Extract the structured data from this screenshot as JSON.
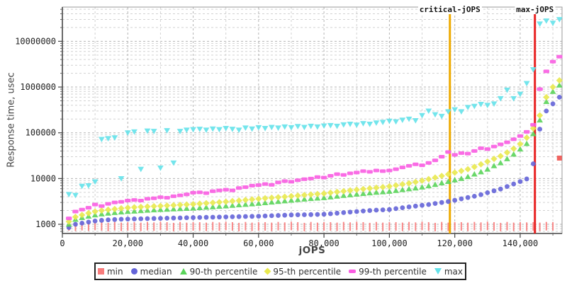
{
  "chart_data": {
    "type": "scatter",
    "title": "",
    "xlabel": "jOPS",
    "ylabel": "Response time, usec",
    "x_axis": {
      "min": 0,
      "max": 152800,
      "tick_values": [
        0,
        20000,
        40000,
        60000,
        80000,
        100000,
        120000,
        140000
      ],
      "tick_labels": [
        "0",
        "20,000",
        "40,000",
        "60,000",
        "80,000",
        "100,000",
        "120,000",
        "140,000"
      ],
      "minor_tick_step": 10000
    },
    "y_axis": {
      "scale": "log",
      "min": 630,
      "max": 56000000,
      "tick_values": [
        1000,
        10000,
        100000,
        1000000,
        10000000
      ],
      "tick_labels": [
        "1000",
        "10000",
        "100000",
        "1000000",
        "10000000"
      ]
    },
    "grid": {
      "style": "dashed",
      "minor_color": "#d2d2d2",
      "major_color": "#b4b4b4"
    },
    "annotations": [
      {
        "label": "critical-jOPS",
        "x": 118500,
        "color": "#eeaa00"
      },
      {
        "label": "max-jOPS",
        "x": 144500,
        "color": "#e82222"
      }
    ],
    "x": [
      2000,
      4000,
      6000,
      8000,
      10000,
      12000,
      14000,
      16000,
      18000,
      20000,
      22000,
      24000,
      26000,
      28000,
      30000,
      32000,
      34000,
      36000,
      38000,
      40000,
      42000,
      44000,
      46000,
      48000,
      50000,
      52000,
      54000,
      56000,
      58000,
      60000,
      62000,
      64000,
      66000,
      68000,
      70000,
      72000,
      74000,
      76000,
      78000,
      80000,
      82000,
      84000,
      86000,
      88000,
      90000,
      92000,
      94000,
      96000,
      98000,
      100000,
      102000,
      104000,
      106000,
      108000,
      110000,
      112000,
      114000,
      116000,
      118000,
      120000,
      122000,
      124000,
      126000,
      128000,
      130000,
      132000,
      134000,
      136000,
      138000,
      140000,
      142000,
      144000,
      146000,
      148000,
      150000,
      152000
    ],
    "series": [
      {
        "name": "min",
        "color": "#f87c7c",
        "outlier_color": "#ef5350",
        "plot_marker": "tick",
        "legend_marker": "square",
        "values": [
          900,
          880,
          910,
          890,
          920,
          900,
          870,
          910,
          880,
          900,
          900,
          880,
          910,
          890,
          920,
          900,
          870,
          910,
          880,
          900,
          900,
          880,
          910,
          890,
          920,
          900,
          870,
          910,
          880,
          900,
          900,
          880,
          910,
          890,
          920,
          900,
          870,
          910,
          880,
          900,
          900,
          880,
          910,
          890,
          920,
          900,
          870,
          910,
          880,
          900,
          900,
          880,
          910,
          890,
          920,
          900,
          870,
          910,
          880,
          900,
          900,
          880,
          910,
          890,
          920,
          900,
          870,
          910,
          880,
          900,
          890,
          900,
          880,
          910,
          900,
          28000
        ]
      },
      {
        "name": "median",
        "color": "#6464d8",
        "plot_marker": "circle",
        "legend_marker": "circle",
        "values": [
          850,
          1000,
          1060,
          1120,
          1180,
          1220,
          1250,
          1270,
          1290,
          1300,
          1310,
          1320,
          1330,
          1340,
          1350,
          1360,
          1370,
          1380,
          1390,
          1400,
          1410,
          1420,
          1430,
          1440,
          1450,
          1460,
          1470,
          1480,
          1490,
          1500,
          1520,
          1540,
          1560,
          1580,
          1600,
          1610,
          1620,
          1630,
          1640,
          1660,
          1700,
          1750,
          1800,
          1850,
          1900,
          1950,
          2000,
          2040,
          2070,
          2100,
          2200,
          2300,
          2400,
          2500,
          2600,
          2700,
          2850,
          3000,
          3150,
          3350,
          3600,
          3850,
          4100,
          4450,
          4900,
          5400,
          5900,
          6700,
          7600,
          8600,
          9800,
          21000,
          120000,
          300000,
          430000,
          600000
        ]
      },
      {
        "name": "90-th percentile",
        "color": "#5ad45a",
        "plot_marker": "triangle-up",
        "legend_marker": "triangle-up",
        "values": [
          1000,
          1280,
          1400,
          1500,
          1600,
          1680,
          1750,
          1800,
          1850,
          1900,
          1940,
          1980,
          2020,
          2060,
          2100,
          2130,
          2160,
          2190,
          2220,
          2250,
          2300,
          2350,
          2400,
          2460,
          2520,
          2580,
          2650,
          2720,
          2790,
          2860,
          2950,
          3050,
          3150,
          3250,
          3350,
          3450,
          3550,
          3650,
          3720,
          3800,
          3950,
          4100,
          4250,
          4400,
          4550,
          4700,
          4850,
          5000,
          5100,
          5250,
          5450,
          5700,
          5950,
          6200,
          6500,
          6900,
          7400,
          8000,
          8600,
          9300,
          10000,
          11000,
          12500,
          14000,
          16000,
          19000,
          22000,
          27000,
          34000,
          44000,
          58000,
          95000,
          190000,
          480000,
          800000,
          1100000
        ]
      },
      {
        "name": "95-th percentile",
        "color": "#e9e94e",
        "plot_marker": "diamond",
        "legend_marker": "diamond",
        "values": [
          1150,
          1450,
          1600,
          1750,
          1900,
          2000,
          2080,
          2150,
          2230,
          2300,
          2350,
          2400,
          2440,
          2480,
          2520,
          2560,
          2610,
          2660,
          2700,
          2750,
          2820,
          2890,
          2960,
          3040,
          3120,
          3210,
          3300,
          3400,
          3500,
          3600,
          3700,
          3800,
          3900,
          4000,
          4120,
          4240,
          4360,
          4480,
          4600,
          4720,
          4900,
          5100,
          5300,
          5500,
          5700,
          5900,
          6100,
          6300,
          6500,
          6750,
          7100,
          7500,
          7900,
          8400,
          9000,
          9700,
          10500,
          11400,
          12400,
          13500,
          14700,
          16000,
          18000,
          20500,
          23500,
          27000,
          31000,
          37000,
          45000,
          57000,
          78000,
          125000,
          240000,
          600000,
          1000000,
          1400000
        ]
      },
      {
        "name": "99-th percentile",
        "color": "#fa5ce2",
        "plot_marker": "hbar",
        "legend_marker": "hbar",
        "values": [
          1350,
          1900,
          2100,
          2300,
          2700,
          2500,
          2800,
          3000,
          3100,
          3300,
          3400,
          3300,
          3600,
          3700,
          3900,
          3800,
          4100,
          4300,
          4500,
          4900,
          5000,
          4800,
          5300,
          5500,
          5700,
          5500,
          6200,
          6500,
          7000,
          7200,
          7600,
          7300,
          8200,
          8800,
          8500,
          9200,
          9700,
          10000,
          10800,
          10500,
          11500,
          12500,
          12000,
          13000,
          13500,
          14500,
          14000,
          15000,
          14500,
          15000,
          16000,
          17500,
          19000,
          20500,
          19500,
          22000,
          25000,
          30000,
          38000,
          33000,
          36000,
          35000,
          40000,
          46000,
          44000,
          50000,
          56000,
          62000,
          72000,
          85000,
          105000,
          150000,
          900000,
          2200000,
          3600000,
          4600000
        ]
      },
      {
        "name": "max",
        "color": "#64e2ea",
        "plot_marker": "triangle-down",
        "legend_marker": "triangle-down",
        "values": [
          4500,
          4300,
          6800,
          7000,
          8500,
          72000,
          75000,
          78000,
          10000,
          100000,
          105000,
          16000,
          110000,
          108000,
          17000,
          112000,
          22000,
          108000,
          115000,
          118000,
          120000,
          115000,
          122000,
          118000,
          125000,
          120000,
          115000,
          128000,
          122000,
          130000,
          125000,
          132000,
          128000,
          135000,
          130000,
          138000,
          132000,
          140000,
          135000,
          142000,
          145000,
          140000,
          150000,
          155000,
          148000,
          160000,
          155000,
          165000,
          170000,
          180000,
          175000,
          190000,
          200000,
          185000,
          240000,
          300000,
          250000,
          230000,
          290000,
          320000,
          290000,
          360000,
          380000,
          420000,
          400000,
          430000,
          560000,
          860000,
          560000,
          700000,
          1200000,
          2400000,
          24000000,
          28000000,
          25000000,
          30000000
        ]
      }
    ],
    "legend": {
      "position": "bottom",
      "items": [
        "min",
        "median",
        "90-th percentile",
        "95-th percentile",
        "99-th percentile",
        "max"
      ]
    }
  }
}
